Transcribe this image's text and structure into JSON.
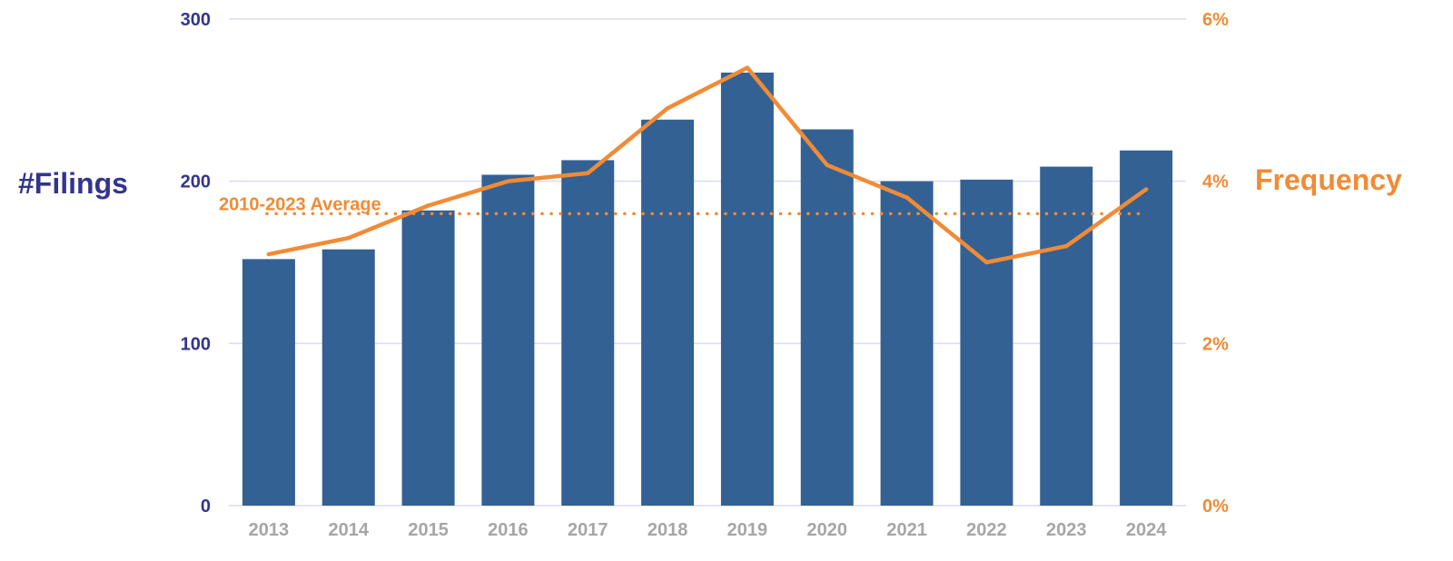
{
  "chart_data": {
    "type": "bar",
    "categories": [
      "2013",
      "2014",
      "2015",
      "2016",
      "2017",
      "2018",
      "2019",
      "2020",
      "2021",
      "2022",
      "2023",
      "2024"
    ],
    "series": [
      {
        "name": "",
        "axis": "left",
        "type": "bar",
        "values": [
          152,
          158,
          182,
          204,
          213,
          238,
          267,
          232,
          200,
          201,
          209,
          219
        ]
      },
      {
        "name": "",
        "axis": "right",
        "type": "line",
        "values": [
          3.1,
          3.3,
          3.7,
          4.0,
          4.1,
          4.9,
          5.4,
          4.2,
          3.8,
          3.0,
          3.2,
          3.9
        ]
      }
    ],
    "reference_line": {
      "label": "2010-2023 Average",
      "axis": "right",
      "value": 3.6,
      "style": "dotted"
    },
    "ylabel": "#Filings",
    "y2label": "Frequency",
    "ylim": [
      0,
      300
    ],
    "y2lim": [
      0,
      6
    ],
    "yticks": [
      0,
      100,
      200,
      300
    ],
    "y2ticks": [
      "0%",
      "2%",
      "4%",
      "6%"
    ],
    "grid": true,
    "legend": "none"
  },
  "colors": {
    "bar": "#336194",
    "line": "#f18b36",
    "left_axis_text": "#33348e",
    "right_axis_text": "#f18b36",
    "x_tick_text": "#a6a6a6",
    "grid": "#d9dcef"
  }
}
